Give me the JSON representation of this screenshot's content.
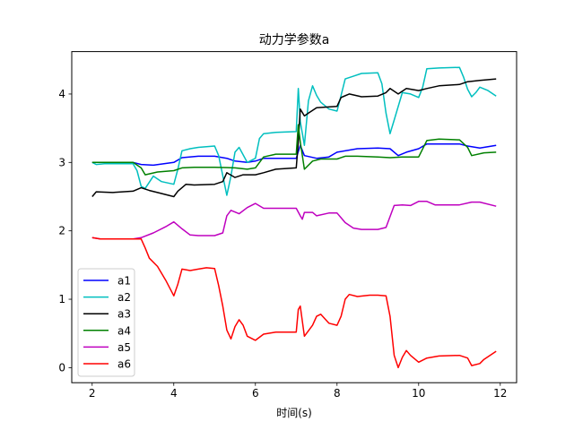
{
  "chart_data": {
    "type": "line",
    "title": "动力学参数a",
    "xlabel": "时间(s)",
    "ylabel": "",
    "xlim": [
      1.5,
      12.4
    ],
    "ylim": [
      -0.22,
      4.62
    ],
    "xticks": [
      2,
      4,
      6,
      8,
      10,
      12
    ],
    "yticks": [
      0,
      1,
      2,
      3,
      4
    ],
    "grid": false,
    "legend": "lower-left",
    "series": [
      {
        "name": "a1",
        "color": "#0000ff",
        "points": [
          [
            2.0,
            3.0
          ],
          [
            3.0,
            3.0
          ],
          [
            3.2,
            2.97
          ],
          [
            3.5,
            2.96
          ],
          [
            4.0,
            3.0
          ],
          [
            4.2,
            3.07
          ],
          [
            4.6,
            3.09
          ],
          [
            5.0,
            3.09
          ],
          [
            5.3,
            3.06
          ],
          [
            5.5,
            3.02
          ],
          [
            5.8,
            3.0
          ],
          [
            6.0,
            3.02
          ],
          [
            6.2,
            3.06
          ],
          [
            7.0,
            3.06
          ],
          [
            7.1,
            3.25
          ],
          [
            7.2,
            3.1
          ],
          [
            7.5,
            3.06
          ],
          [
            7.8,
            3.08
          ],
          [
            8.0,
            3.15
          ],
          [
            8.5,
            3.2
          ],
          [
            9.0,
            3.21
          ],
          [
            9.3,
            3.2
          ],
          [
            9.5,
            3.1
          ],
          [
            9.7,
            3.15
          ],
          [
            10.0,
            3.2
          ],
          [
            10.2,
            3.27
          ],
          [
            11.0,
            3.27
          ],
          [
            11.2,
            3.24
          ],
          [
            11.5,
            3.21
          ],
          [
            11.9,
            3.25
          ]
        ]
      },
      {
        "name": "a2",
        "color": "#00bfbf",
        "points": [
          [
            2.0,
            3.0
          ],
          [
            2.1,
            2.97
          ],
          [
            2.3,
            2.98
          ],
          [
            3.0,
            2.98
          ],
          [
            3.1,
            2.88
          ],
          [
            3.2,
            2.65
          ],
          [
            3.3,
            2.62
          ],
          [
            3.5,
            2.8
          ],
          [
            3.7,
            2.72
          ],
          [
            4.0,
            2.68
          ],
          [
            4.1,
            2.9
          ],
          [
            4.2,
            3.17
          ],
          [
            4.4,
            3.2
          ],
          [
            4.6,
            3.22
          ],
          [
            5.0,
            3.24
          ],
          [
            5.1,
            3.1
          ],
          [
            5.3,
            2.52
          ],
          [
            5.4,
            2.8
          ],
          [
            5.5,
            3.15
          ],
          [
            5.6,
            3.22
          ],
          [
            5.8,
            3.0
          ],
          [
            6.0,
            3.06
          ],
          [
            6.1,
            3.35
          ],
          [
            6.2,
            3.42
          ],
          [
            6.5,
            3.44
          ],
          [
            7.0,
            3.45
          ],
          [
            7.05,
            4.08
          ],
          [
            7.1,
            3.6
          ],
          [
            7.2,
            3.25
          ],
          [
            7.3,
            3.9
          ],
          [
            7.4,
            4.12
          ],
          [
            7.5,
            3.98
          ],
          [
            7.6,
            3.88
          ],
          [
            7.8,
            3.78
          ],
          [
            8.0,
            3.75
          ],
          [
            8.1,
            3.98
          ],
          [
            8.2,
            4.22
          ],
          [
            8.4,
            4.26
          ],
          [
            8.6,
            4.3
          ],
          [
            9.0,
            4.31
          ],
          [
            9.1,
            4.15
          ],
          [
            9.2,
            3.72
          ],
          [
            9.3,
            3.42
          ],
          [
            9.4,
            3.62
          ],
          [
            9.6,
            4.02
          ],
          [
            9.8,
            4.0
          ],
          [
            10.0,
            3.95
          ],
          [
            10.1,
            4.1
          ],
          [
            10.2,
            4.37
          ],
          [
            10.5,
            4.38
          ],
          [
            11.0,
            4.39
          ],
          [
            11.1,
            4.25
          ],
          [
            11.2,
            4.07
          ],
          [
            11.3,
            3.96
          ],
          [
            11.4,
            4.02
          ],
          [
            11.5,
            4.1
          ],
          [
            11.7,
            4.05
          ],
          [
            11.9,
            3.97
          ]
        ]
      },
      {
        "name": "a3",
        "color": "#000000",
        "points": [
          [
            2.0,
            2.5
          ],
          [
            2.1,
            2.57
          ],
          [
            2.5,
            2.56
          ],
          [
            3.0,
            2.58
          ],
          [
            3.2,
            2.63
          ],
          [
            3.4,
            2.59
          ],
          [
            3.6,
            2.56
          ],
          [
            4.0,
            2.5
          ],
          [
            4.1,
            2.58
          ],
          [
            4.3,
            2.68
          ],
          [
            4.5,
            2.67
          ],
          [
            5.0,
            2.68
          ],
          [
            5.2,
            2.72
          ],
          [
            5.3,
            2.85
          ],
          [
            5.5,
            2.78
          ],
          [
            5.7,
            2.82
          ],
          [
            6.0,
            2.82
          ],
          [
            6.2,
            2.85
          ],
          [
            6.5,
            2.9
          ],
          [
            7.0,
            2.92
          ],
          [
            7.05,
            3.3
          ],
          [
            7.1,
            3.78
          ],
          [
            7.2,
            3.68
          ],
          [
            7.3,
            3.72
          ],
          [
            7.5,
            3.8
          ],
          [
            8.0,
            3.82
          ],
          [
            8.1,
            3.95
          ],
          [
            8.3,
            4.0
          ],
          [
            8.6,
            3.96
          ],
          [
            9.0,
            3.97
          ],
          [
            9.2,
            4.02
          ],
          [
            9.3,
            4.08
          ],
          [
            9.5,
            4.0
          ],
          [
            9.7,
            4.08
          ],
          [
            10.0,
            4.05
          ],
          [
            10.2,
            4.08
          ],
          [
            10.5,
            4.12
          ],
          [
            11.0,
            4.14
          ],
          [
            11.2,
            4.18
          ],
          [
            11.5,
            4.2
          ],
          [
            11.9,
            4.22
          ]
        ]
      },
      {
        "name": "a4",
        "color": "#008000",
        "points": [
          [
            2.0,
            3.0
          ],
          [
            3.0,
            3.0
          ],
          [
            3.2,
            2.92
          ],
          [
            3.3,
            2.82
          ],
          [
            3.6,
            2.86
          ],
          [
            4.0,
            2.88
          ],
          [
            4.2,
            2.92
          ],
          [
            4.5,
            2.93
          ],
          [
            5.0,
            2.93
          ],
          [
            5.5,
            2.92
          ],
          [
            5.8,
            2.9
          ],
          [
            6.0,
            2.92
          ],
          [
            6.2,
            3.08
          ],
          [
            6.5,
            3.12
          ],
          [
            7.0,
            3.12
          ],
          [
            7.05,
            3.55
          ],
          [
            7.1,
            3.3
          ],
          [
            7.2,
            2.9
          ],
          [
            7.4,
            3.02
          ],
          [
            7.6,
            3.05
          ],
          [
            8.0,
            3.05
          ],
          [
            8.2,
            3.09
          ],
          [
            8.5,
            3.09
          ],
          [
            9.0,
            3.08
          ],
          [
            9.3,
            3.07
          ],
          [
            9.6,
            3.08
          ],
          [
            10.0,
            3.08
          ],
          [
            10.2,
            3.32
          ],
          [
            10.5,
            3.34
          ],
          [
            11.0,
            3.33
          ],
          [
            11.2,
            3.22
          ],
          [
            11.3,
            3.1
          ],
          [
            11.6,
            3.14
          ],
          [
            11.9,
            3.15
          ]
        ]
      },
      {
        "name": "a5",
        "color": "#bf00bf",
        "points": [
          [
            2.0,
            1.9
          ],
          [
            2.2,
            1.88
          ],
          [
            3.0,
            1.88
          ],
          [
            3.2,
            1.9
          ],
          [
            3.5,
            1.97
          ],
          [
            3.8,
            2.06
          ],
          [
            4.0,
            2.13
          ],
          [
            4.2,
            2.03
          ],
          [
            4.4,
            1.94
          ],
          [
            4.6,
            1.93
          ],
          [
            5.0,
            1.93
          ],
          [
            5.2,
            1.97
          ],
          [
            5.3,
            2.22
          ],
          [
            5.4,
            2.3
          ],
          [
            5.6,
            2.25
          ],
          [
            5.8,
            2.34
          ],
          [
            6.0,
            2.4
          ],
          [
            6.2,
            2.33
          ],
          [
            6.5,
            2.33
          ],
          [
            7.0,
            2.33
          ],
          [
            7.1,
            2.22
          ],
          [
            7.15,
            2.17
          ],
          [
            7.2,
            2.27
          ],
          [
            7.4,
            2.27
          ],
          [
            7.5,
            2.22
          ],
          [
            7.8,
            2.26
          ],
          [
            8.0,
            2.26
          ],
          [
            8.2,
            2.12
          ],
          [
            8.4,
            2.04
          ],
          [
            8.6,
            2.02
          ],
          [
            9.0,
            2.02
          ],
          [
            9.2,
            2.05
          ],
          [
            9.4,
            2.37
          ],
          [
            9.6,
            2.38
          ],
          [
            9.8,
            2.37
          ],
          [
            10.0,
            2.43
          ],
          [
            10.2,
            2.43
          ],
          [
            10.4,
            2.38
          ],
          [
            11.0,
            2.38
          ],
          [
            11.3,
            2.42
          ],
          [
            11.5,
            2.42
          ],
          [
            11.9,
            2.36
          ]
        ]
      },
      {
        "name": "a6",
        "color": "#ff0000",
        "points": [
          [
            2.0,
            1.9
          ],
          [
            2.2,
            1.88
          ],
          [
            3.0,
            1.88
          ],
          [
            3.2,
            1.88
          ],
          [
            3.3,
            1.75
          ],
          [
            3.4,
            1.6
          ],
          [
            3.6,
            1.48
          ],
          [
            3.8,
            1.28
          ],
          [
            4.0,
            1.05
          ],
          [
            4.1,
            1.22
          ],
          [
            4.2,
            1.44
          ],
          [
            4.4,
            1.42
          ],
          [
            4.6,
            1.44
          ],
          [
            4.8,
            1.46
          ],
          [
            5.0,
            1.45
          ],
          [
            5.1,
            1.2
          ],
          [
            5.2,
            0.9
          ],
          [
            5.3,
            0.55
          ],
          [
            5.4,
            0.42
          ],
          [
            5.5,
            0.6
          ],
          [
            5.6,
            0.7
          ],
          [
            5.7,
            0.62
          ],
          [
            5.8,
            0.46
          ],
          [
            6.0,
            0.4
          ],
          [
            6.2,
            0.49
          ],
          [
            6.5,
            0.52
          ],
          [
            7.0,
            0.52
          ],
          [
            7.05,
            0.85
          ],
          [
            7.1,
            0.9
          ],
          [
            7.2,
            0.46
          ],
          [
            7.4,
            0.62
          ],
          [
            7.5,
            0.75
          ],
          [
            7.6,
            0.78
          ],
          [
            7.8,
            0.65
          ],
          [
            8.0,
            0.62
          ],
          [
            8.1,
            0.75
          ],
          [
            8.2,
            1.0
          ],
          [
            8.3,
            1.07
          ],
          [
            8.5,
            1.04
          ],
          [
            8.8,
            1.06
          ],
          [
            9.0,
            1.06
          ],
          [
            9.2,
            1.05
          ],
          [
            9.3,
            0.75
          ],
          [
            9.4,
            0.18
          ],
          [
            9.5,
            0.0
          ],
          [
            9.6,
            0.15
          ],
          [
            9.7,
            0.25
          ],
          [
            9.8,
            0.18
          ],
          [
            10.0,
            0.08
          ],
          [
            10.2,
            0.14
          ],
          [
            10.5,
            0.17
          ],
          [
            11.0,
            0.18
          ],
          [
            11.2,
            0.14
          ],
          [
            11.3,
            0.03
          ],
          [
            11.5,
            0.06
          ],
          [
            11.6,
            0.12
          ],
          [
            11.9,
            0.24
          ]
        ]
      }
    ]
  }
}
